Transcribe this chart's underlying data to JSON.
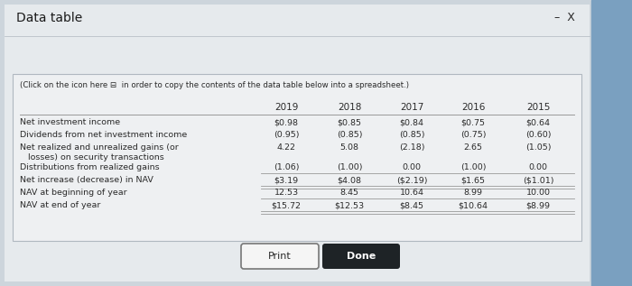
{
  "title": "Data table",
  "subtitle": "(Click on the icon here ⊟  in order to copy the contents of the data table below into a spreadsheet.)",
  "columns": [
    "2019",
    "2018",
    "2017",
    "2016",
    "2015"
  ],
  "rows": [
    "Net investment income",
    "Dividends from net investment income",
    "Net realized and unrealized gains (or\n   losses) on security transactions",
    "Distributions from realized gains",
    "Net increase (decrease) in NAV",
    "NAV at beginning of year",
    "NAV at end of year"
  ],
  "data": [
    [
      "$0.98",
      "$0.85",
      "$0.84",
      "$0.75",
      "$0.64"
    ],
    [
      "(0.95)",
      "(0.85)",
      "(0.85)",
      "(0.75)",
      "(0.60)"
    ],
    [
      "4.22",
      "5.08",
      "(2.18)",
      "2.65",
      "(1.05)"
    ],
    [
      "(1.06)",
      "(1.00)",
      "0.00",
      "(1.00)",
      "0.00"
    ],
    [
      "$3.19",
      "$4.08",
      "($2.19)",
      "$1.65",
      "($1.01)"
    ],
    [
      "12.53",
      "8.45",
      "10.64",
      "8.99",
      "10.00"
    ],
    [
      "$15.72",
      "$12.53",
      "$8.45",
      "$10.64",
      "$8.99"
    ]
  ],
  "bg_outer": "#cdd5dc",
  "bg_main": "#e6eaed",
  "bg_inner": "#eef0f2",
  "text_color": "#2a2a2a",
  "title_color": "#1a1a1a",
  "print_btn_bg": "#f5f5f5",
  "done_btn_bg": "#1e2326",
  "done_btn_text": "#ffffff",
  "print_btn_text": "#2a2a2a",
  "line_color": "#999999",
  "border_color": "#b0b8c0"
}
